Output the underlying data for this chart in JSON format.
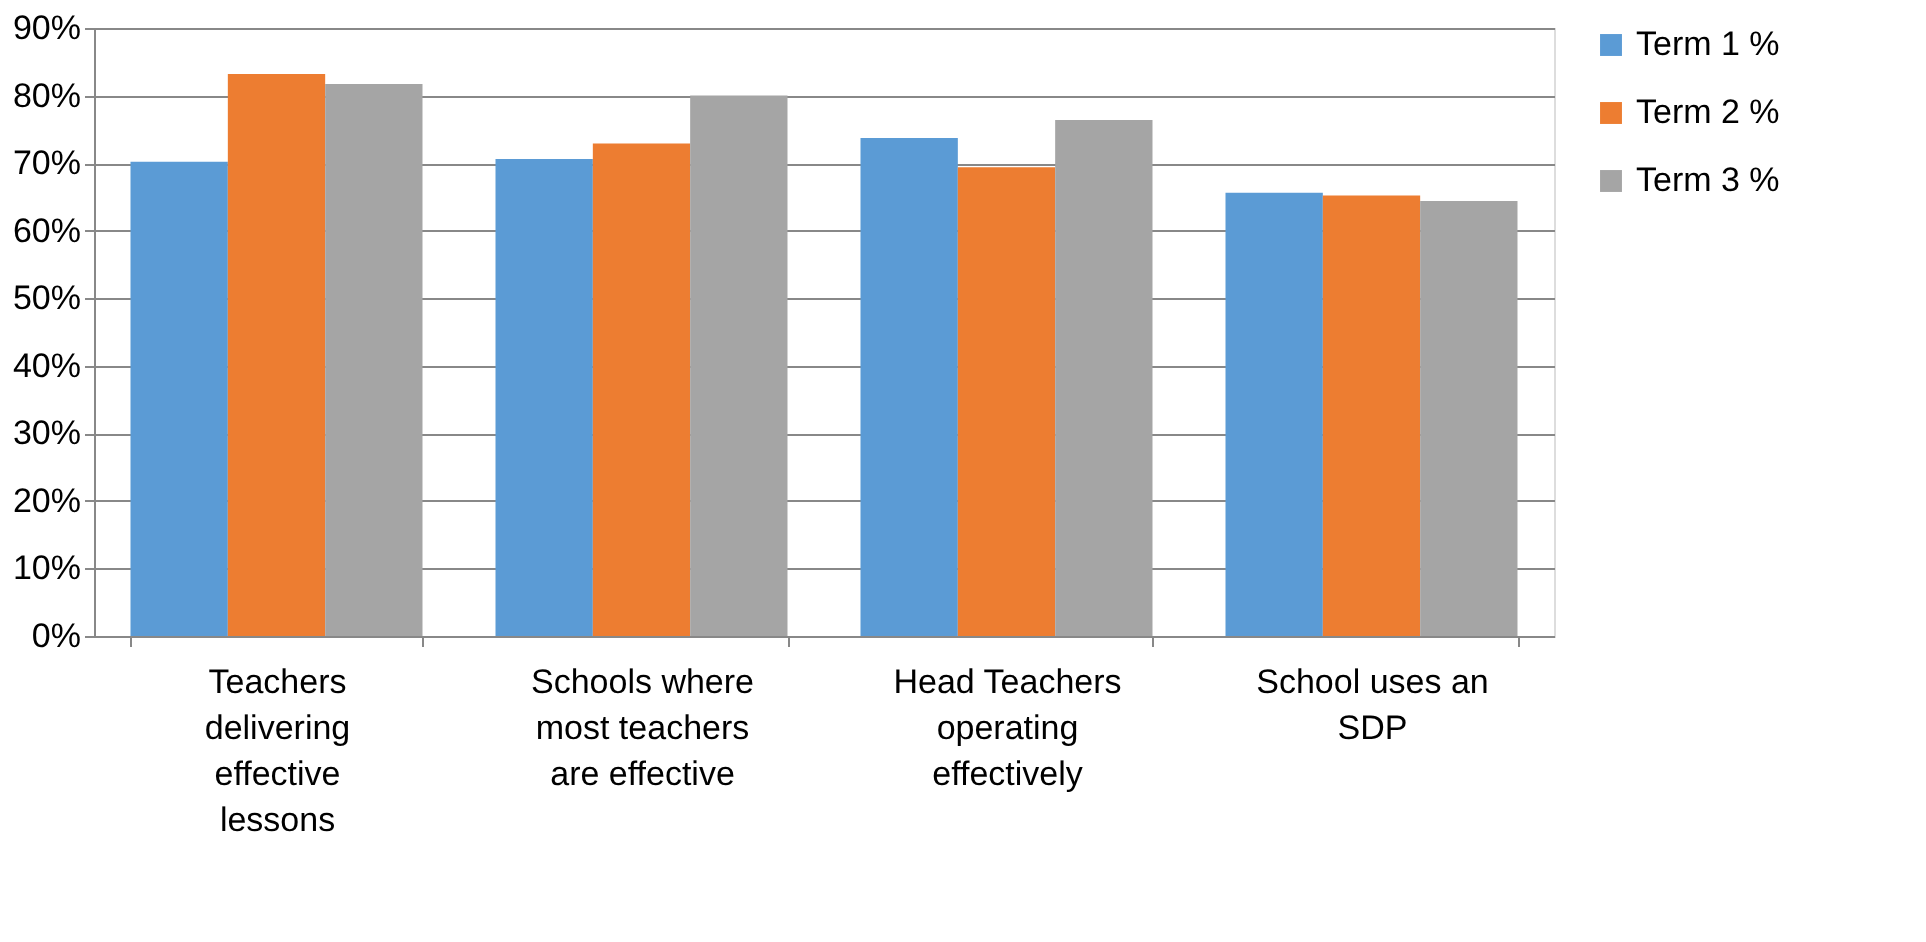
{
  "chart_data": {
    "type": "bar",
    "categories": [
      "Teachers delivering effective lessons",
      "Schools where most teachers are effective",
      "Head Teachers operating effectively",
      "School uses an SDP"
    ],
    "series": [
      {
        "name": "Term 1 %",
        "color": "#5b9bd5",
        "values": [
          70.2,
          70.6,
          73.7,
          65.6
        ]
      },
      {
        "name": "Term 2 %",
        "color": "#ed7d31",
        "values": [
          83.2,
          72.9,
          69.4,
          65.2
        ]
      },
      {
        "name": "Term 3 %",
        "color": "#a5a5a5",
        "values": [
          81.7,
          80.0,
          76.4,
          64.4
        ]
      }
    ],
    "ylim": [
      0,
      90
    ],
    "yticks": [
      {
        "value": 0,
        "label": "0%"
      },
      {
        "value": 10,
        "label": "10%"
      },
      {
        "value": 20,
        "label": "20%"
      },
      {
        "value": 30,
        "label": "30%"
      },
      {
        "value": 40,
        "label": "40%"
      },
      {
        "value": 50,
        "label": "50%"
      },
      {
        "value": 60,
        "label": "60%"
      },
      {
        "value": 70,
        "label": "70%"
      },
      {
        "value": 80,
        "label": "80%"
      },
      {
        "value": 90,
        "label": "90%"
      }
    ],
    "grid": "y",
    "legend": "right"
  }
}
